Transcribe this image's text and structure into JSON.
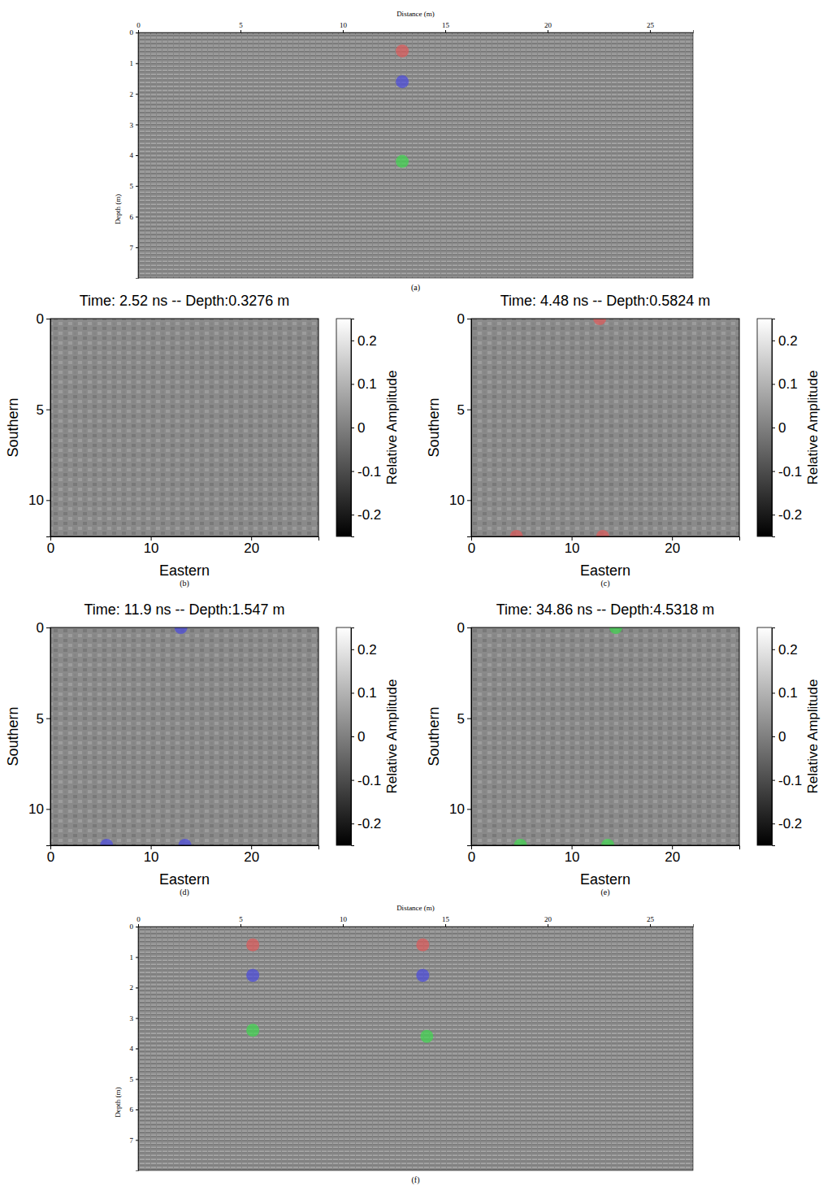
{
  "chart_data": [
    {
      "type": "scatter",
      "caption": "(a)",
      "x_label": "Distance (m)",
      "y_label": "Depth (m)",
      "xlim": [
        0,
        27.1
      ],
      "ylim": [
        0,
        8
      ],
      "xticks": [
        0,
        5,
        10,
        15,
        20,
        25
      ],
      "yticks": [
        0,
        1,
        2,
        3,
        4,
        5,
        6,
        7
      ],
      "x": [
        12.9,
        12.9,
        12.9
      ],
      "y": [
        0.6,
        1.6,
        4.2
      ],
      "colors": [
        "#e05a5a",
        "#4a4ae0",
        "#3fd94f"
      ]
    },
    {
      "type": "scatter",
      "title": "Time: 2.52 ns -- Depth:0.3276 m",
      "caption": "(b)",
      "x_label": "Eastern",
      "y_label": "Southern",
      "xlim": [
        0,
        26.7
      ],
      "ylim": [
        0,
        12
      ],
      "xticks": [
        0,
        10,
        20
      ],
      "yticks": [
        0,
        5,
        10
      ],
      "colorbar": {
        "label": "Relative Amplitude",
        "range": [
          -0.25,
          0.25
        ],
        "ticks": [
          -0.2,
          -0.1,
          0,
          0.1,
          0.2
        ]
      }
    },
    {
      "type": "scatter",
      "title": "Time: 4.48 ns -- Depth:0.5824 m",
      "caption": "(c)",
      "x_label": "Eastern",
      "y_label": "Southern",
      "xlim": [
        0,
        26.7
      ],
      "ylim": [
        0,
        12
      ],
      "xticks": [
        0,
        10,
        20
      ],
      "yticks": [
        0,
        5,
        10
      ],
      "x": [
        12.8,
        4.5,
        13.1
      ],
      "y": [
        0,
        12,
        12
      ],
      "colors": [
        "#e05a5a",
        "#e05a5a",
        "#e05a5a"
      ],
      "colorbar": {
        "label": "Relative Amplitude",
        "range": [
          -0.25,
          0.25
        ],
        "ticks": [
          -0.2,
          -0.1,
          0,
          0.1,
          0.2
        ]
      }
    },
    {
      "type": "scatter",
      "title": "Time: 11.9 ns -- Depth:1.547 m",
      "caption": "(d)",
      "x_label": "Eastern",
      "y_label": "Southern",
      "xlim": [
        0,
        26.7
      ],
      "ylim": [
        0,
        12
      ],
      "xticks": [
        0,
        10,
        20
      ],
      "yticks": [
        0,
        5,
        10
      ],
      "x": [
        13.0,
        5.6,
        13.4
      ],
      "y": [
        0,
        12,
        12
      ],
      "colors": [
        "#4a4ae0",
        "#4a4ae0",
        "#4a4ae0"
      ],
      "colorbar": {
        "label": "Relative Amplitude",
        "range": [
          -0.25,
          0.25
        ],
        "ticks": [
          -0.2,
          -0.1,
          0,
          0.1,
          0.2
        ]
      }
    },
    {
      "type": "scatter",
      "title": "Time: 34.86 ns -- Depth:4.5318 m",
      "caption": "(e)",
      "x_label": "Eastern",
      "y_label": "Southern",
      "xlim": [
        0,
        26.7
      ],
      "ylim": [
        0,
        12
      ],
      "xticks": [
        0,
        10,
        20
      ],
      "yticks": [
        0,
        5,
        10
      ],
      "x": [
        14.4,
        4.9,
        13.6
      ],
      "y": [
        0,
        12,
        12
      ],
      "colors": [
        "#3fd94f",
        "#3fd94f",
        "#3fd94f"
      ],
      "colorbar": {
        "label": "Relative Amplitude",
        "range": [
          -0.25,
          0.25
        ],
        "ticks": [
          -0.2,
          -0.1,
          0,
          0.1,
          0.2
        ]
      }
    },
    {
      "type": "scatter",
      "caption": "(f)",
      "x_label": "Distance (m)",
      "y_label": "Depth (m)",
      "xlim": [
        0,
        27.1
      ],
      "ylim": [
        0,
        8
      ],
      "xticks": [
        0,
        5,
        10,
        15,
        20,
        25
      ],
      "yticks": [
        0,
        1,
        2,
        3,
        4,
        5,
        6,
        7
      ],
      "x": [
        5.6,
        13.9,
        5.6,
        13.9,
        5.6,
        14.1
      ],
      "y": [
        0.6,
        0.6,
        1.6,
        1.6,
        3.4,
        3.6
      ],
      "colors": [
        "#e05a5a",
        "#e05a5a",
        "#4a4ae0",
        "#4a4ae0",
        "#3fd94f",
        "#3fd94f"
      ]
    }
  ]
}
